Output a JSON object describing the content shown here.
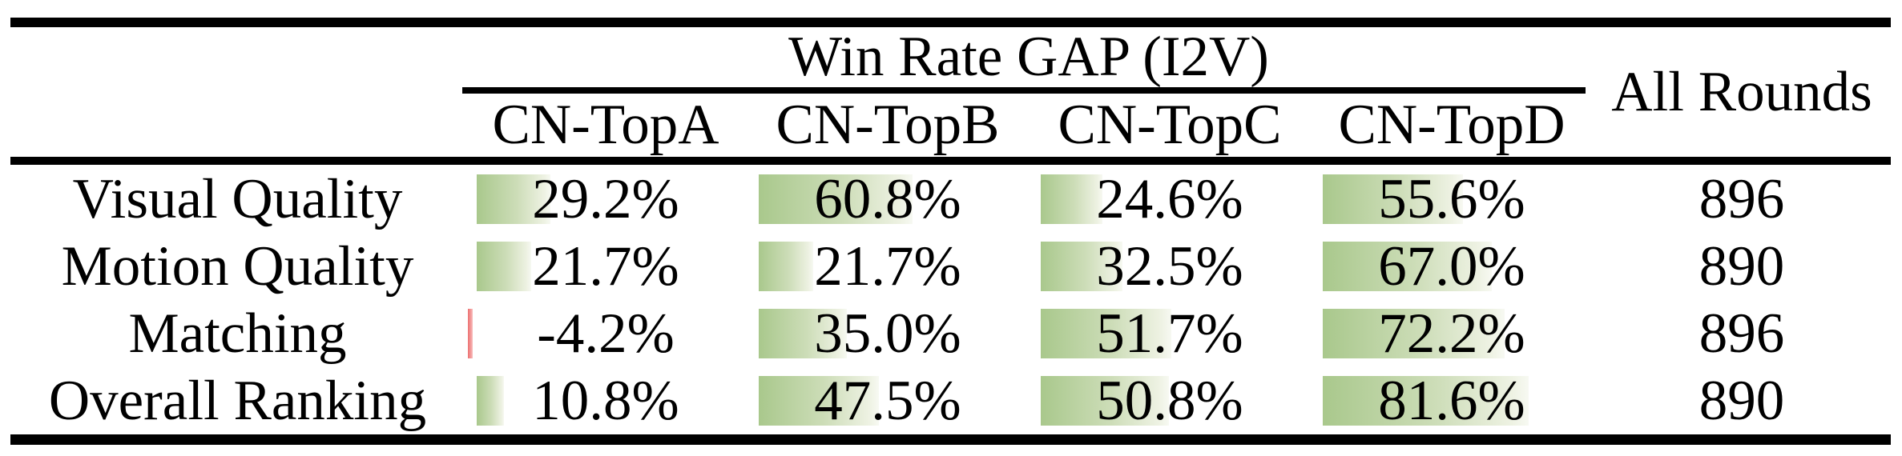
{
  "title": "Win Rate GAP (I2V) results table",
  "table": {
    "group_header": "Win Rate GAP (I2V)",
    "all_rounds_header": "All Rounds",
    "columns": [
      "CN-TopA",
      "CN-TopB",
      "CN-TopC",
      "CN-TopD"
    ],
    "rows": [
      {
        "label": "Visual Quality",
        "values": [
          29.2,
          60.8,
          24.6,
          55.6
        ],
        "display": [
          "29.2%",
          "60.8%",
          "24.6%",
          "55.6%"
        ],
        "all_rounds": "896"
      },
      {
        "label": "Motion Quality",
        "values": [
          21.7,
          21.7,
          32.5,
          67.0
        ],
        "display": [
          "21.7%",
          "21.7%",
          "32.5%",
          "67.0%"
        ],
        "all_rounds": "890"
      },
      {
        "label": "Matching",
        "values": [
          -4.2,
          35.0,
          51.7,
          72.2
        ],
        "display": [
          "-4.2%",
          "35.0%",
          "51.7%",
          "72.2%"
        ],
        "all_rounds": "896"
      },
      {
        "label": "Overall Ranking",
        "values": [
          10.8,
          47.5,
          50.8,
          81.6
        ],
        "display": [
          "10.8%",
          "47.5%",
          "50.8%",
          "81.6%"
        ],
        "all_rounds": "890"
      }
    ]
  },
  "colors": {
    "positive_bar_start": "#a9c88c",
    "positive_bar_end": "#eef2e3",
    "negative_bar_start": "#ec6f6f",
    "negative_bar_end": "#f8bcbc",
    "rule": "#000000",
    "text": "#000000",
    "background": "#ffffff"
  },
  "chart_data": {
    "type": "table",
    "title": "Win Rate GAP (I2V)",
    "columns": [
      "CN-TopA",
      "CN-TopB",
      "CN-TopC",
      "CN-TopD",
      "All Rounds"
    ],
    "row_labels": [
      "Visual Quality",
      "Motion Quality",
      "Matching",
      "Overall Ranking"
    ],
    "rows": [
      [
        29.2,
        60.8,
        24.6,
        55.6,
        896
      ],
      [
        21.7,
        21.7,
        32.5,
        67.0,
        890
      ],
      [
        -4.2,
        35.0,
        51.7,
        72.2,
        896
      ],
      [
        10.8,
        47.5,
        50.8,
        81.6,
        890
      ]
    ],
    "units": {
      "win_rate_gap": "percent",
      "all_rounds": "count"
    },
    "notes": "Win-rate-gap cells contain left-aligned green gradient data bars proportional to the value; the single negative value (-4.2%) is marked with a thin red bar."
  }
}
